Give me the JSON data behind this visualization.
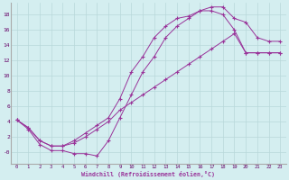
{
  "xlabel": "Windchill (Refroidissement éolien,°C)",
  "bg_color": "#d4eef0",
  "grid_color": "#b8d8da",
  "line_color": "#993399",
  "xlim": [
    -0.5,
    23.5
  ],
  "ylim": [
    -1.5,
    19.5
  ],
  "xticks": [
    0,
    1,
    2,
    3,
    4,
    5,
    6,
    7,
    8,
    9,
    10,
    11,
    12,
    13,
    14,
    15,
    16,
    17,
    18,
    19,
    20,
    21,
    22,
    23
  ],
  "yticks": [
    0,
    2,
    4,
    6,
    8,
    10,
    12,
    14,
    16,
    18
  ],
  "yticklabels": [
    "-0",
    "2",
    "4",
    "6",
    "8",
    "10",
    "12",
    "14",
    "16",
    "18"
  ],
  "line1_x": [
    0,
    1,
    2,
    3,
    4,
    5,
    6,
    7,
    8,
    9,
    10,
    11,
    12,
    13,
    14,
    15,
    16,
    17,
    18,
    19,
    20,
    21,
    22,
    23
  ],
  "line1_y": [
    4.2,
    3.2,
    1.5,
    0.8,
    0.8,
    1.2,
    2.0,
    3.0,
    4.0,
    5.5,
    6.5,
    7.5,
    8.5,
    9.5,
    10.5,
    11.5,
    12.5,
    13.5,
    14.5,
    15.5,
    13.0,
    13.0,
    13.0,
    13.0
  ],
  "line2_x": [
    0,
    1,
    2,
    3,
    4,
    5,
    6,
    7,
    8,
    9,
    10,
    11,
    12,
    13,
    14,
    15,
    16,
    17,
    18,
    19,
    20,
    21,
    22,
    23
  ],
  "line2_y": [
    4.2,
    3.2,
    1.5,
    0.8,
    0.8,
    1.5,
    2.5,
    3.5,
    4.5,
    7.0,
    10.5,
    12.5,
    15.0,
    16.5,
    17.5,
    17.8,
    18.5,
    19.0,
    19.0,
    17.5,
    17.0,
    15.0,
    14.5,
    14.5
  ],
  "line3_x": [
    0,
    1,
    2,
    3,
    4,
    5,
    6,
    7,
    8,
    9,
    10,
    11,
    12,
    13,
    14,
    15,
    16,
    17,
    18,
    19,
    20,
    21,
    22,
    23
  ],
  "line3_y": [
    4.2,
    3.0,
    1.0,
    0.2,
    0.2,
    -0.2,
    -0.2,
    -0.5,
    1.5,
    4.5,
    7.5,
    10.5,
    12.5,
    15.0,
    16.5,
    17.5,
    18.5,
    18.5,
    18.0,
    16.0,
    13.0,
    13.0,
    13.0,
    13.0
  ]
}
